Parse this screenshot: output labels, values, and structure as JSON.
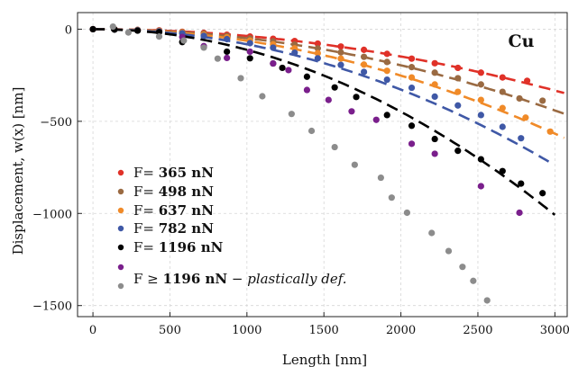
{
  "chart_data": {
    "type": "scatter",
    "title": "",
    "xlabel": "Length [nm]",
    "ylabel": "Displacement, w(x) [nm]",
    "xlim": [
      -100,
      3080
    ],
    "ylim": [
      -1560,
      90
    ],
    "x_ticks": [
      0,
      500,
      1000,
      1500,
      2000,
      2500,
      3000
    ],
    "y_ticks": [
      0,
      -500,
      -1000,
      -1500
    ],
    "x_tick_labels": [
      "0",
      "500",
      "1000",
      "1500",
      "2000",
      "2500",
      "3000"
    ],
    "y_tick_labels": [
      "0",
      "−500",
      "−1000",
      "−1500"
    ],
    "grid": true,
    "annotation": "Cu",
    "legend_position": "bottom-left",
    "series": [
      {
        "name_prefix": "F= ",
        "name_value": "365 nN",
        "color": "#e03128",
        "fit_coefficient": -3.7e-05,
        "fit_x_max": 3070,
        "points": [
          [
            0,
            0
          ],
          [
            140,
            0
          ],
          [
            290,
            -4
          ],
          [
            430,
            -6
          ],
          [
            580,
            -14
          ],
          [
            720,
            -20
          ],
          [
            870,
            -30
          ],
          [
            1020,
            -40
          ],
          [
            1170,
            -52
          ],
          [
            1310,
            -64
          ],
          [
            1460,
            -78
          ],
          [
            1610,
            -94
          ],
          [
            1760,
            -112
          ],
          [
            1910,
            -134
          ],
          [
            2070,
            -160
          ],
          [
            2220,
            -185
          ],
          [
            2370,
            -210
          ],
          [
            2520,
            -236
          ],
          [
            2660,
            -262
          ],
          [
            2820,
            -280
          ]
        ]
      },
      {
        "name_prefix": "F= ",
        "name_value": "498 nN",
        "color": "#9a6a42",
        "fit_coefficient": -4.9e-05,
        "fit_x_max": 3070,
        "points": [
          [
            0,
            0
          ],
          [
            140,
            0
          ],
          [
            290,
            -4
          ],
          [
            430,
            -8
          ],
          [
            580,
            -16
          ],
          [
            720,
            -24
          ],
          [
            870,
            -36
          ],
          [
            1020,
            -50
          ],
          [
            1170,
            -66
          ],
          [
            1310,
            -84
          ],
          [
            1460,
            -104
          ],
          [
            1610,
            -126
          ],
          [
            1760,
            -150
          ],
          [
            1910,
            -178
          ],
          [
            2070,
            -206
          ],
          [
            2220,
            -236
          ],
          [
            2370,
            -266
          ],
          [
            2520,
            -300
          ],
          [
            2660,
            -340
          ],
          [
            2770,
            -376
          ],
          [
            2920,
            -388
          ]
        ]
      },
      {
        "name_prefix": "F= ",
        "name_value": "637 nN",
        "color": "#f08a28",
        "fit_coefficient": -6.3e-05,
        "fit_x_max": 3070,
        "points": [
          [
            0,
            0
          ],
          [
            140,
            -2
          ],
          [
            290,
            -6
          ],
          [
            430,
            -10
          ],
          [
            580,
            -18
          ],
          [
            720,
            -30
          ],
          [
            870,
            -44
          ],
          [
            1020,
            -62
          ],
          [
            1170,
            -82
          ],
          [
            1310,
            -104
          ],
          [
            1460,
            -130
          ],
          [
            1610,
            -160
          ],
          [
            1760,
            -192
          ],
          [
            1910,
            -226
          ],
          [
            2070,
            -262
          ],
          [
            2220,
            -300
          ],
          [
            2370,
            -340
          ],
          [
            2520,
            -384
          ],
          [
            2660,
            -428
          ],
          [
            2810,
            -480
          ],
          [
            2970,
            -556
          ]
        ]
      },
      {
        "name_prefix": "F= ",
        "name_value": "782 nN",
        "color": "#3f58a6",
        "fit_coefficient": -8.2e-05,
        "fit_x_max": 2970,
        "points": [
          [
            0,
            0
          ],
          [
            140,
            -2
          ],
          [
            290,
            -6
          ],
          [
            430,
            -12
          ],
          [
            580,
            -22
          ],
          [
            720,
            -36
          ],
          [
            870,
            -54
          ],
          [
            1020,
            -76
          ],
          [
            1170,
            -100
          ],
          [
            1310,
            -128
          ],
          [
            1460,
            -158
          ],
          [
            1610,
            -194
          ],
          [
            1760,
            -232
          ],
          [
            1910,
            -274
          ],
          [
            2070,
            -318
          ],
          [
            2220,
            -366
          ],
          [
            2370,
            -414
          ],
          [
            2520,
            -466
          ],
          [
            2660,
            -530
          ],
          [
            2780,
            -592
          ]
        ]
      },
      {
        "name_prefix": "F= ",
        "name_value": "1196 nN",
        "color": "#000000",
        "fit_coefficient": -0.000112,
        "fit_x_max": 3000,
        "points": [
          [
            0,
            0
          ],
          [
            140,
            -2
          ],
          [
            290,
            -8
          ],
          [
            430,
            -16
          ],
          [
            580,
            -70
          ],
          [
            720,
            -96
          ],
          [
            870,
            -122
          ],
          [
            1020,
            -158
          ],
          [
            1170,
            -186
          ],
          [
            1230,
            -210
          ],
          [
            1390,
            -258
          ],
          [
            1570,
            -316
          ],
          [
            1710,
            -368
          ],
          [
            1910,
            -466
          ],
          [
            2070,
            -524
          ],
          [
            2220,
            -596
          ],
          [
            2370,
            -660
          ],
          [
            2520,
            -706
          ],
          [
            2660,
            -770
          ],
          [
            2780,
            -838
          ],
          [
            2920,
            -890
          ]
        ]
      },
      {
        "name_prefix": "",
        "name_value": "",
        "color": "#7a1f8c",
        "fit_coefficient": null,
        "fit_x_max": null,
        "points": [
          [
            580,
            -42
          ],
          [
            720,
            -92
          ],
          [
            870,
            -156
          ],
          [
            1020,
            -122
          ],
          [
            1170,
            -186
          ],
          [
            1270,
            -222
          ],
          [
            1390,
            -330
          ],
          [
            1530,
            -384
          ],
          [
            1680,
            -446
          ],
          [
            1840,
            -492
          ],
          [
            2070,
            -622
          ],
          [
            2220,
            -676
          ],
          [
            2520,
            -852
          ],
          [
            2770,
            -996
          ]
        ]
      },
      {
        "name_prefix": "",
        "name_value": "",
        "color": "#8c8c8c",
        "fit_coefficient": null,
        "fit_x_max": null,
        "points": [
          [
            130,
            14
          ],
          [
            230,
            -18
          ],
          [
            430,
            -40
          ],
          [
            590,
            -62
          ],
          [
            720,
            -100
          ],
          [
            810,
            -160
          ],
          [
            960,
            -266
          ],
          [
            1100,
            -364
          ],
          [
            1290,
            -460
          ],
          [
            1420,
            -552
          ],
          [
            1570,
            -640
          ],
          [
            1700,
            -736
          ],
          [
            1870,
            -806
          ],
          [
            1940,
            -914
          ],
          [
            2040,
            -996
          ],
          [
            2200,
            -1106
          ],
          [
            2310,
            -1204
          ],
          [
            2400,
            -1290
          ],
          [
            2470,
            -1366
          ],
          [
            2560,
            -1472
          ]
        ]
      }
    ],
    "legend": [
      {
        "prefix": "F= ",
        "value": "365 nN",
        "suffix": "",
        "color": "#e03128"
      },
      {
        "prefix": "F= ",
        "value": "498 nN",
        "suffix": "",
        "color": "#9a6a42"
      },
      {
        "prefix": "F= ",
        "value": "637 nN",
        "suffix": "",
        "color": "#f08a28"
      },
      {
        "prefix": "F= ",
        "value": "782 nN",
        "suffix": "",
        "color": "#3f58a6"
      },
      {
        "prefix": "F= ",
        "value": "1196 nN",
        "suffix": "",
        "color": "#000000"
      },
      {
        "prefix": "F ≥ ",
        "value": "1196 nN",
        "suffix": "plastically def.",
        "separator": " − ",
        "color": "#7a1f8c",
        "color2": "#8c8c8c"
      }
    ]
  }
}
